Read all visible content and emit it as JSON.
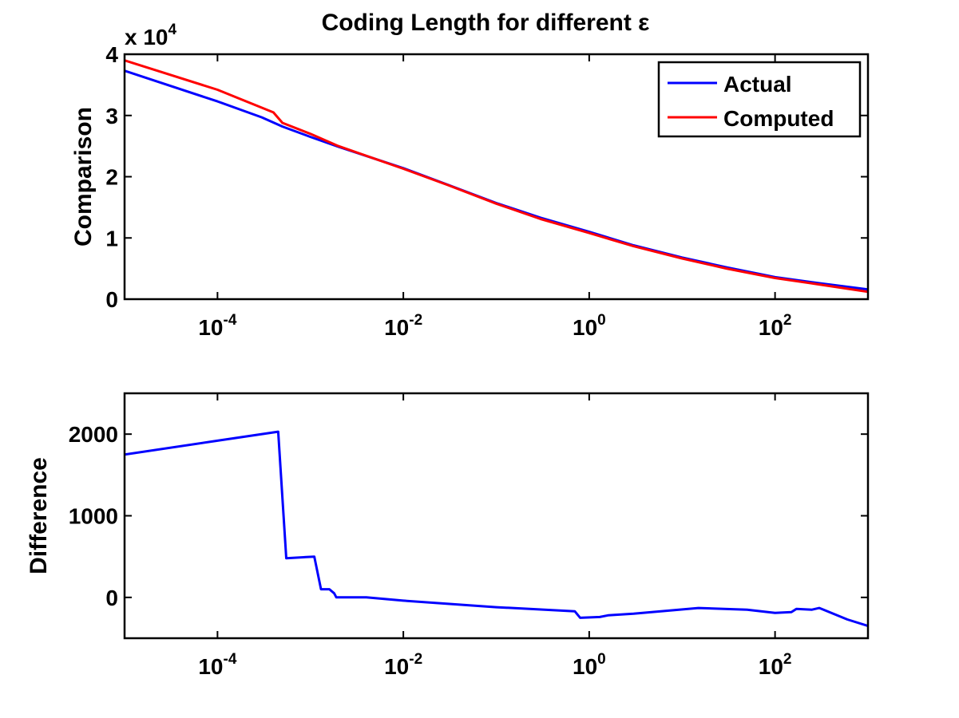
{
  "title": "Coding Length for different ε",
  "chart_data": [
    {
      "type": "line",
      "title": "Coding Length for different ε",
      "xlabel": "",
      "ylabel": "Comparison",
      "xscale": "log",
      "xlim": [
        1e-05,
        1000
      ],
      "ylim": [
        0,
        40000
      ],
      "y_multiplier_label": "x 10",
      "y_multiplier_exponent": "4",
      "xticks": [
        {
          "value": 0.0001,
          "base": "10",
          "exp": "-4"
        },
        {
          "value": 0.01,
          "base": "10",
          "exp": "-2"
        },
        {
          "value": 1,
          "base": "10",
          "exp": "0"
        },
        {
          "value": 100,
          "base": "10",
          "exp": "2"
        }
      ],
      "yticks": [
        {
          "value": 0,
          "label": "0"
        },
        {
          "value": 10000,
          "label": "1"
        },
        {
          "value": 20000,
          "label": "2"
        },
        {
          "value": 30000,
          "label": "3"
        },
        {
          "value": 40000,
          "label": "4"
        }
      ],
      "grid": false,
      "legend_position": "top-right",
      "series": [
        {
          "name": "Actual",
          "color": "#0000ff",
          "points": [
            [
              1e-05,
              37300
            ],
            [
              0.0001,
              32300
            ],
            [
              0.0003,
              29700
            ],
            [
              0.0005,
              28200
            ],
            [
              0.001,
              26500
            ],
            [
              0.002,
              24900
            ],
            [
              0.01,
              21400
            ],
            [
              0.03,
              18700
            ],
            [
              0.1,
              15700
            ],
            [
              0.3,
              13300
            ],
            [
              1,
              11000
            ],
            [
              3,
              8800
            ],
            [
              10,
              6800
            ],
            [
              30,
              5200
            ],
            [
              100,
              3600
            ],
            [
              300,
              2600
            ],
            [
              1000,
              1600
            ]
          ]
        },
        {
          "name": "Computed",
          "color": "#ff0000",
          "points": [
            [
              1e-05,
              39000
            ],
            [
              0.0001,
              34200
            ],
            [
              0.0004,
              30500
            ],
            [
              0.0005,
              28800
            ],
            [
              0.001,
              27000
            ],
            [
              0.002,
              25000
            ],
            [
              0.01,
              21300
            ],
            [
              0.03,
              18650
            ],
            [
              0.1,
              15600
            ],
            [
              0.3,
              13100
            ],
            [
              1,
              10800
            ],
            [
              3,
              8650
            ],
            [
              10,
              6650
            ],
            [
              30,
              5000
            ],
            [
              100,
              3450
            ],
            [
              300,
              2400
            ],
            [
              1000,
              1200
            ]
          ]
        }
      ]
    },
    {
      "type": "line",
      "title": "",
      "xlabel": "",
      "ylabel": "Difference",
      "xscale": "log",
      "xlim": [
        1e-05,
        1000
      ],
      "ylim": [
        -500,
        2500
      ],
      "xticks": [
        {
          "value": 0.0001,
          "base": "10",
          "exp": "-4"
        },
        {
          "value": 0.01,
          "base": "10",
          "exp": "-2"
        },
        {
          "value": 1,
          "base": "10",
          "exp": "0"
        },
        {
          "value": 100,
          "base": "10",
          "exp": "2"
        }
      ],
      "yticks": [
        {
          "value": 0,
          "label": "0"
        },
        {
          "value": 1000,
          "label": "1000"
        },
        {
          "value": 2000,
          "label": "2000"
        }
      ],
      "grid": false,
      "series": [
        {
          "color": "#0000ff",
          "points": [
            [
              1e-05,
              1750
            ],
            [
              0.0001,
              1920
            ],
            [
              0.00045,
              2030
            ],
            [
              0.00055,
              480
            ],
            [
              0.0011,
              500
            ],
            [
              0.0013,
              100
            ],
            [
              0.0016,
              100
            ],
            [
              0.0018,
              50
            ],
            [
              0.0019,
              0
            ],
            [
              0.004,
              0
            ],
            [
              0.01,
              -40
            ],
            [
              0.1,
              -120
            ],
            [
              0.7,
              -170
            ],
            [
              0.8,
              -250
            ],
            [
              1.3,
              -240
            ],
            [
              1.6,
              -220
            ],
            [
              3,
              -200
            ],
            [
              15,
              -130
            ],
            [
              50,
              -150
            ],
            [
              100,
              -190
            ],
            [
              150,
              -180
            ],
            [
              170,
              -140
            ],
            [
              250,
              -150
            ],
            [
              300,
              -130
            ],
            [
              600,
              -270
            ],
            [
              1000,
              -350
            ]
          ]
        }
      ]
    }
  ]
}
